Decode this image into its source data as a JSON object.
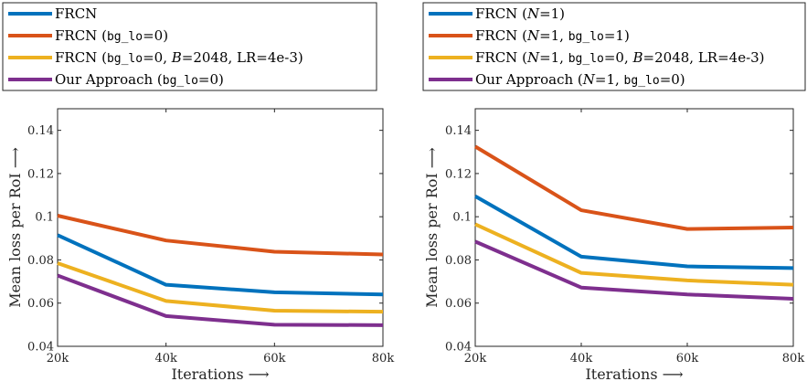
{
  "chart_data": [
    {
      "type": "line",
      "categories": [
        "20k",
        "40k",
        "60k",
        "80k"
      ],
      "x": [
        20,
        40,
        60,
        80
      ],
      "xlabel": "Iterations ⟶",
      "ylabel": "Mean loss per RoI ⟶",
      "ylim": [
        0.04,
        0.15
      ],
      "yticks": [
        "0.04",
        "0.06",
        "0.08",
        "0.1",
        "0.12",
        "0.14"
      ],
      "grid": false,
      "legend_position": "top",
      "legend": [
        [
          {
            "t": "FRCN",
            "s": "serif"
          }
        ],
        [
          {
            "t": "FRCN (",
            "s": "serif"
          },
          {
            "t": "bg_lo",
            "s": "mono"
          },
          {
            "t": "=0)",
            "s": "serif"
          }
        ],
        [
          {
            "t": "FRCN (",
            "s": "serif"
          },
          {
            "t": "bg_lo",
            "s": "mono"
          },
          {
            "t": "=0, ",
            "s": "serif"
          },
          {
            "t": "B",
            "s": "italic"
          },
          {
            "t": "=2048, LR=4e-3)",
            "s": "serif"
          }
        ],
        [
          {
            "t": "Our Approach (",
            "s": "serif"
          },
          {
            "t": "bg_lo",
            "s": "mono"
          },
          {
            "t": "=0)",
            "s": "serif"
          }
        ]
      ],
      "series": [
        {
          "color": "#0072bd",
          "values": [
            0.0915,
            0.0685,
            0.065,
            0.064
          ]
        },
        {
          "color": "#d95319",
          "values": [
            0.1005,
            0.089,
            0.0838,
            0.0825
          ]
        },
        {
          "color": "#edb120",
          "values": [
            0.0785,
            0.061,
            0.0565,
            0.056
          ]
        },
        {
          "color": "#7e2f8e",
          "values": [
            0.0728,
            0.054,
            0.05,
            0.0498
          ]
        }
      ]
    },
    {
      "type": "line",
      "categories": [
        "20k",
        "40k",
        "60k",
        "80k"
      ],
      "x": [
        20,
        40,
        60,
        80
      ],
      "xlabel": "Iterations ⟶",
      "ylabel": "Mean loss per RoI ⟶",
      "ylim": [
        0.04,
        0.15
      ],
      "yticks": [
        "0.04",
        "0.06",
        "0.08",
        "0.1",
        "0.12",
        "0.14"
      ],
      "grid": false,
      "legend_position": "top",
      "legend": [
        [
          {
            "t": "FRCN (",
            "s": "serif"
          },
          {
            "t": "N",
            "s": "italic"
          },
          {
            "t": "=1)",
            "s": "serif"
          }
        ],
        [
          {
            "t": "FRCN (",
            "s": "serif"
          },
          {
            "t": "N",
            "s": "italic"
          },
          {
            "t": "=1, ",
            "s": "serif"
          },
          {
            "t": "bg_lo",
            "s": "mono"
          },
          {
            "t": "=1)",
            "s": "serif"
          }
        ],
        [
          {
            "t": "FRCN (",
            "s": "serif"
          },
          {
            "t": "N",
            "s": "italic"
          },
          {
            "t": "=1, ",
            "s": "serif"
          },
          {
            "t": "bg_lo",
            "s": "mono"
          },
          {
            "t": "=0, ",
            "s": "serif"
          },
          {
            "t": "B",
            "s": "italic"
          },
          {
            "t": "=2048, LR=4e-3)",
            "s": "serif"
          }
        ],
        [
          {
            "t": "Our Approach (",
            "s": "serif"
          },
          {
            "t": "N",
            "s": "italic"
          },
          {
            "t": "=1, ",
            "s": "serif"
          },
          {
            "t": "bg_lo",
            "s": "mono"
          },
          {
            "t": "=0)",
            "s": "serif"
          }
        ]
      ],
      "series": [
        {
          "color": "#0072bd",
          "values": [
            0.1095,
            0.0815,
            0.077,
            0.0762
          ]
        },
        {
          "color": "#d95319",
          "values": [
            0.1325,
            0.103,
            0.0943,
            0.095
          ]
        },
        {
          "color": "#edb120",
          "values": [
            0.0965,
            0.074,
            0.0705,
            0.0685
          ]
        },
        {
          "color": "#7e2f8e",
          "values": [
            0.0885,
            0.0672,
            0.064,
            0.062
          ]
        }
      ]
    }
  ]
}
